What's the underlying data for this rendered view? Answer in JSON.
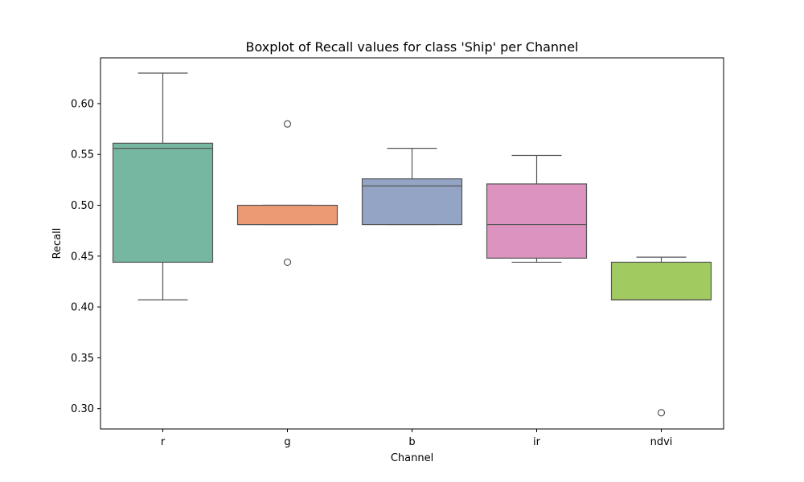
{
  "chart_data": {
    "type": "boxplot",
    "title": "Boxplot of Recall values for class 'Ship' per Channel",
    "xlabel": "Channel",
    "ylabel": "Recall",
    "ylim": [
      0.28,
      0.645
    ],
    "y_ticks": [
      "0.30",
      "0.35",
      "0.40",
      "0.45",
      "0.50",
      "0.55",
      "0.60"
    ],
    "categories": [
      "r",
      "g",
      "b",
      "ir",
      "ndvi"
    ],
    "colors": [
      "#76b7a1",
      "#ec9a74",
      "#94a4c5",
      "#dd93c0",
      "#a1ca61"
    ],
    "boxes": [
      {
        "whisker_low": 0.407,
        "q1": 0.444,
        "median": 0.556,
        "q3": 0.561,
        "whisker_high": 0.63,
        "outliers": []
      },
      {
        "whisker_low": 0.481,
        "q1": 0.481,
        "median": 0.481,
        "q3": 0.5,
        "whisker_high": 0.5,
        "outliers": [
          0.58,
          0.444
        ]
      },
      {
        "whisker_low": 0.481,
        "q1": 0.481,
        "median": 0.519,
        "q3": 0.526,
        "whisker_high": 0.556,
        "outliers": []
      },
      {
        "whisker_low": 0.444,
        "q1": 0.448,
        "median": 0.481,
        "q3": 0.521,
        "whisker_high": 0.549,
        "outliers": []
      },
      {
        "whisker_low": 0.407,
        "q1": 0.407,
        "median": 0.407,
        "q3": 0.444,
        "whisker_high": 0.449,
        "outliers": [
          0.296
        ]
      }
    ],
    "grid": false,
    "legend": "none"
  }
}
